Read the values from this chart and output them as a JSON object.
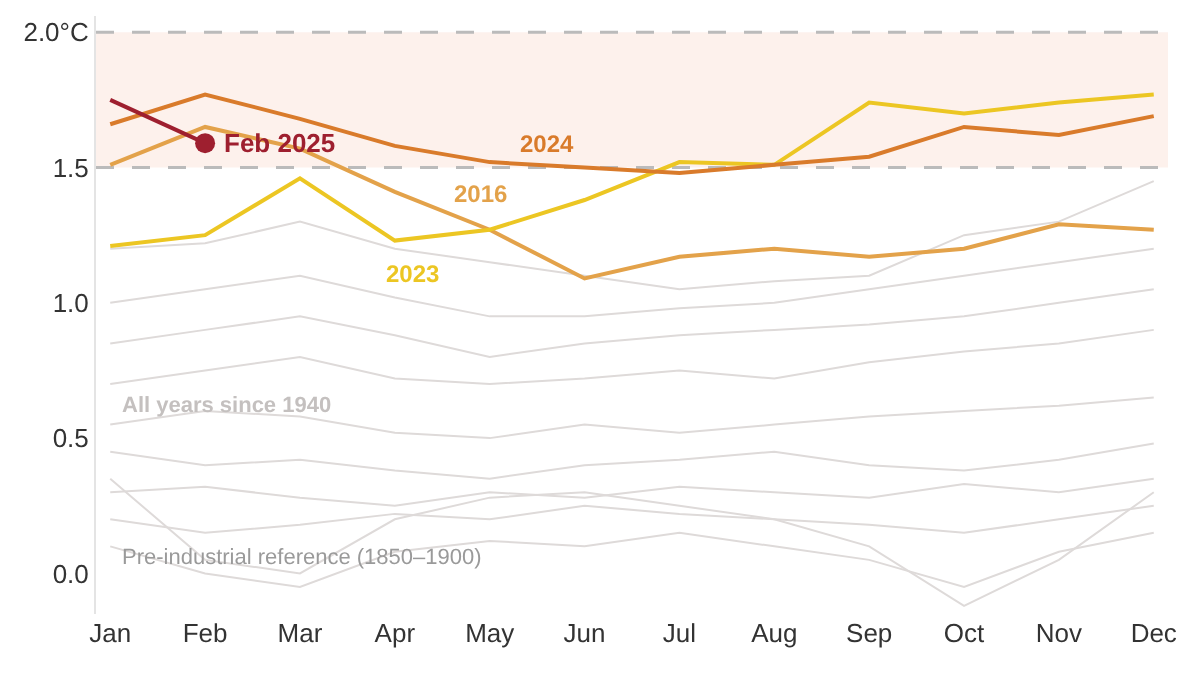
{
  "chart_data": {
    "type": "line",
    "categories": [
      "Jan",
      "Feb",
      "Mar",
      "Apr",
      "May",
      "Jun",
      "Jul",
      "Aug",
      "Sep",
      "Oct",
      "Nov",
      "Dec"
    ],
    "ylim": [
      -0.15,
      2.06
    ],
    "yticks": [
      {
        "value": 0,
        "label": "0.0"
      },
      0.5,
      {
        "value": 1,
        "label": "1.0"
      },
      1.5,
      {
        "value": 2,
        "label": "2.0°C"
      }
    ],
    "grid": false,
    "legend": false,
    "marker": "none",
    "line_style": "solid",
    "bands": [
      {
        "axis": "y",
        "from": 1.5,
        "to": 2.0,
        "color": "#fdf1ec"
      }
    ],
    "ref_lines": [
      {
        "axis": "y",
        "value": 1.5,
        "color": "#bbbbbb",
        "line_style": "dashed"
      },
      {
        "axis": "y",
        "value": 2.0,
        "color": "#bbbbbb",
        "line_style": "dashed"
      }
    ],
    "annotations": [
      "All years since 1940",
      {
        "text": "Pre-industrial reference (1850–1900)",
        "y": 0
      }
    ],
    "series": [
      {
        "color": "#dedad9",
        "values": [
          1.2,
          1.22,
          1.3,
          1.2,
          1.15,
          1.1,
          1.05,
          1.08,
          1.1,
          1.25,
          1.3,
          1.45
        ]
      },
      {
        "color": "#dedad9",
        "values": [
          1.0,
          1.05,
          1.1,
          1.02,
          0.95,
          0.95,
          0.98,
          1.0,
          1.05,
          1.1,
          1.15,
          1.2
        ]
      },
      {
        "color": "#dedad9",
        "values": [
          0.85,
          0.9,
          0.95,
          0.88,
          0.8,
          0.85,
          0.88,
          0.9,
          0.92,
          0.95,
          1.0,
          1.05
        ]
      },
      {
        "color": "#dedad9",
        "values": [
          0.7,
          0.75,
          0.8,
          0.72,
          0.7,
          0.72,
          0.75,
          0.72,
          0.78,
          0.82,
          0.85,
          0.9
        ]
      },
      {
        "color": "#dedad9",
        "values": [
          0.55,
          0.6,
          0.58,
          0.52,
          0.5,
          0.55,
          0.52,
          0.55,
          0.58,
          0.6,
          0.62,
          0.65
        ]
      },
      {
        "color": "#dedad9",
        "values": [
          0.45,
          0.4,
          0.42,
          0.38,
          0.35,
          0.4,
          0.42,
          0.45,
          0.4,
          0.38,
          0.42,
          0.48
        ]
      },
      {
        "color": "#dedad9",
        "values": [
          0.3,
          0.32,
          0.28,
          0.25,
          0.3,
          0.28,
          0.32,
          0.3,
          0.28,
          0.33,
          0.3,
          0.35
        ]
      },
      {
        "color": "#dedad9",
        "values": [
          0.2,
          0.15,
          0.18,
          0.22,
          0.2,
          0.25,
          0.22,
          0.2,
          0.18,
          0.15,
          0.2,
          0.25
        ]
      },
      {
        "color": "#dedad9",
        "values": [
          0.1,
          0.0,
          -0.05,
          0.08,
          0.12,
          0.1,
          0.15,
          0.1,
          0.05,
          -0.05,
          0.08,
          0.15
        ]
      },
      {
        "color": "#dedad9",
        "values": [
          0.35,
          0.05,
          0.0,
          0.2,
          0.28,
          0.3,
          0.25,
          0.2,
          0.1,
          -0.12,
          0.05,
          0.3
        ]
      },
      {
        "name": "2016",
        "color": "#e3a24a",
        "values": [
          1.51,
          1.65,
          1.57,
          1.41,
          1.27,
          1.09,
          1.17,
          1.2,
          1.17,
          1.2,
          1.29,
          1.27
        ]
      },
      {
        "name": "2023",
        "color": "#ecc623",
        "values": [
          1.21,
          1.25,
          1.46,
          1.23,
          1.27,
          1.38,
          1.52,
          1.51,
          1.74,
          1.7,
          1.74,
          1.77
        ]
      },
      {
        "name": "2024",
        "color": "#d97b2b",
        "values": [
          1.66,
          1.77,
          1.68,
          1.58,
          1.52,
          1.5,
          1.48,
          1.51,
          1.54,
          1.65,
          1.62,
          1.69
        ]
      },
      {
        "color": "#9e1f2f",
        "values": [
          1.75,
          1.59,
          null,
          null,
          null,
          null,
          null,
          null,
          null,
          null,
          null,
          null
        ]
      },
      {
        "name": "Feb 2025",
        "type": "scatter",
        "marker": "circle",
        "color": "#9e1f2f",
        "values": [
          null,
          1.59,
          null,
          null,
          null,
          null,
          null,
          null,
          null,
          null,
          null,
          null
        ]
      }
    ]
  }
}
